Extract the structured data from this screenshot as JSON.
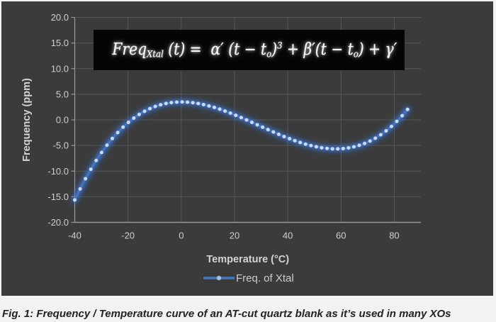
{
  "colors": {
    "chart_background": "#3b3b3b",
    "frame_background": "#f2f2f2",
    "gridline": "#575757",
    "axis_line": "#989898",
    "tick_label": "#cfcfcf",
    "axis_title": "#d4d4d4",
    "legend_text": "#cdcdcd",
    "series_line": "#4577c1",
    "series_glow": "#3b78dd",
    "series_marker": "#ccdaef",
    "formula_box_background": "#050505",
    "formula_text": "#f4f4f4",
    "caption_text": "#222222"
  },
  "formula": {
    "segments": [
      {
        "text": "Freq"
      },
      {
        "text": "Xtal",
        "style": "sub"
      },
      {
        "text": " (t) =  α′ (t − t"
      },
      {
        "text": "o",
        "style": "sub"
      },
      {
        "text": ")"
      },
      {
        "text": "3",
        "style": "sup"
      },
      {
        "text": " + β′(t − t"
      },
      {
        "text": "o",
        "style": "sub"
      },
      {
        "text": ") + γ′"
      }
    ]
  },
  "caption": "Fig. 1: Frequency / Temperature curve of an AT-cut quartz blank as it’s used in many XOs",
  "chart_data": {
    "type": "line",
    "title": "",
    "xlabel": "Temperature (°C)",
    "ylabel": "Frequency (ppm)",
    "xlim": [
      -40,
      90
    ],
    "ylim": [
      -20,
      20
    ],
    "x_tick_values": [
      -40,
      -20,
      0,
      20,
      40,
      60,
      80
    ],
    "x_tick_labels": [
      "-40",
      "-20",
      "0",
      "20",
      "40",
      "60",
      "80"
    ],
    "y_tick_values": [
      20,
      15,
      10,
      5,
      0,
      -5,
      -10,
      -15,
      -20
    ],
    "y_tick_labels": [
      "20.0",
      "15.0",
      "10.0",
      "5.0",
      "0.0",
      "-5.0",
      "-10.0",
      "-15.0",
      "-20.0"
    ],
    "grid": true,
    "legend_position": "bottom",
    "series": [
      {
        "name": "Freq. of Xtal",
        "marker": "circle",
        "x": [
          -40.0,
          -37.98,
          -35.97,
          -33.95,
          -31.94,
          -29.92,
          -27.9,
          -25.89,
          -23.87,
          -21.85,
          -19.84,
          -17.82,
          -15.81,
          -13.79,
          -11.77,
          -9.76,
          -7.74,
          -5.73,
          -3.71,
          -1.69,
          0.32,
          2.34,
          4.35,
          6.37,
          8.39,
          10.4,
          12.42,
          14.44,
          16.45,
          18.47,
          20.48,
          22.5,
          24.52,
          26.53,
          28.55,
          30.56,
          32.58,
          34.6,
          36.61,
          38.63,
          40.65,
          42.66,
          44.68,
          46.69,
          48.71,
          50.73,
          52.74,
          54.76,
          56.77,
          58.79,
          60.81,
          62.82,
          64.84,
          66.85,
          68.87,
          70.89,
          72.9,
          74.92,
          76.94,
          78.95,
          80.97,
          82.98,
          85.0
        ],
        "y": [
          -15.62,
          -13.47,
          -11.48,
          -9.63,
          -7.93,
          -6.37,
          -4.94,
          -3.64,
          -2.47,
          -1.42,
          -0.48,
          0.34,
          1.06,
          1.67,
          2.19,
          2.61,
          2.95,
          3.2,
          3.37,
          3.46,
          3.49,
          3.45,
          3.35,
          3.19,
          2.98,
          2.72,
          2.42,
          2.09,
          1.71,
          1.31,
          0.89,
          0.45,
          -0.01,
          -0.48,
          -0.96,
          -1.43,
          -1.91,
          -2.37,
          -2.82,
          -3.26,
          -3.67,
          -4.06,
          -4.42,
          -4.74,
          -5.02,
          -5.25,
          -5.44,
          -5.57,
          -5.65,
          -5.66,
          -5.6,
          -5.47,
          -5.26,
          -4.97,
          -4.6,
          -4.14,
          -3.58,
          -2.91,
          -2.15,
          -1.28,
          -0.29,
          0.82,
          2.05
        ]
      }
    ]
  }
}
